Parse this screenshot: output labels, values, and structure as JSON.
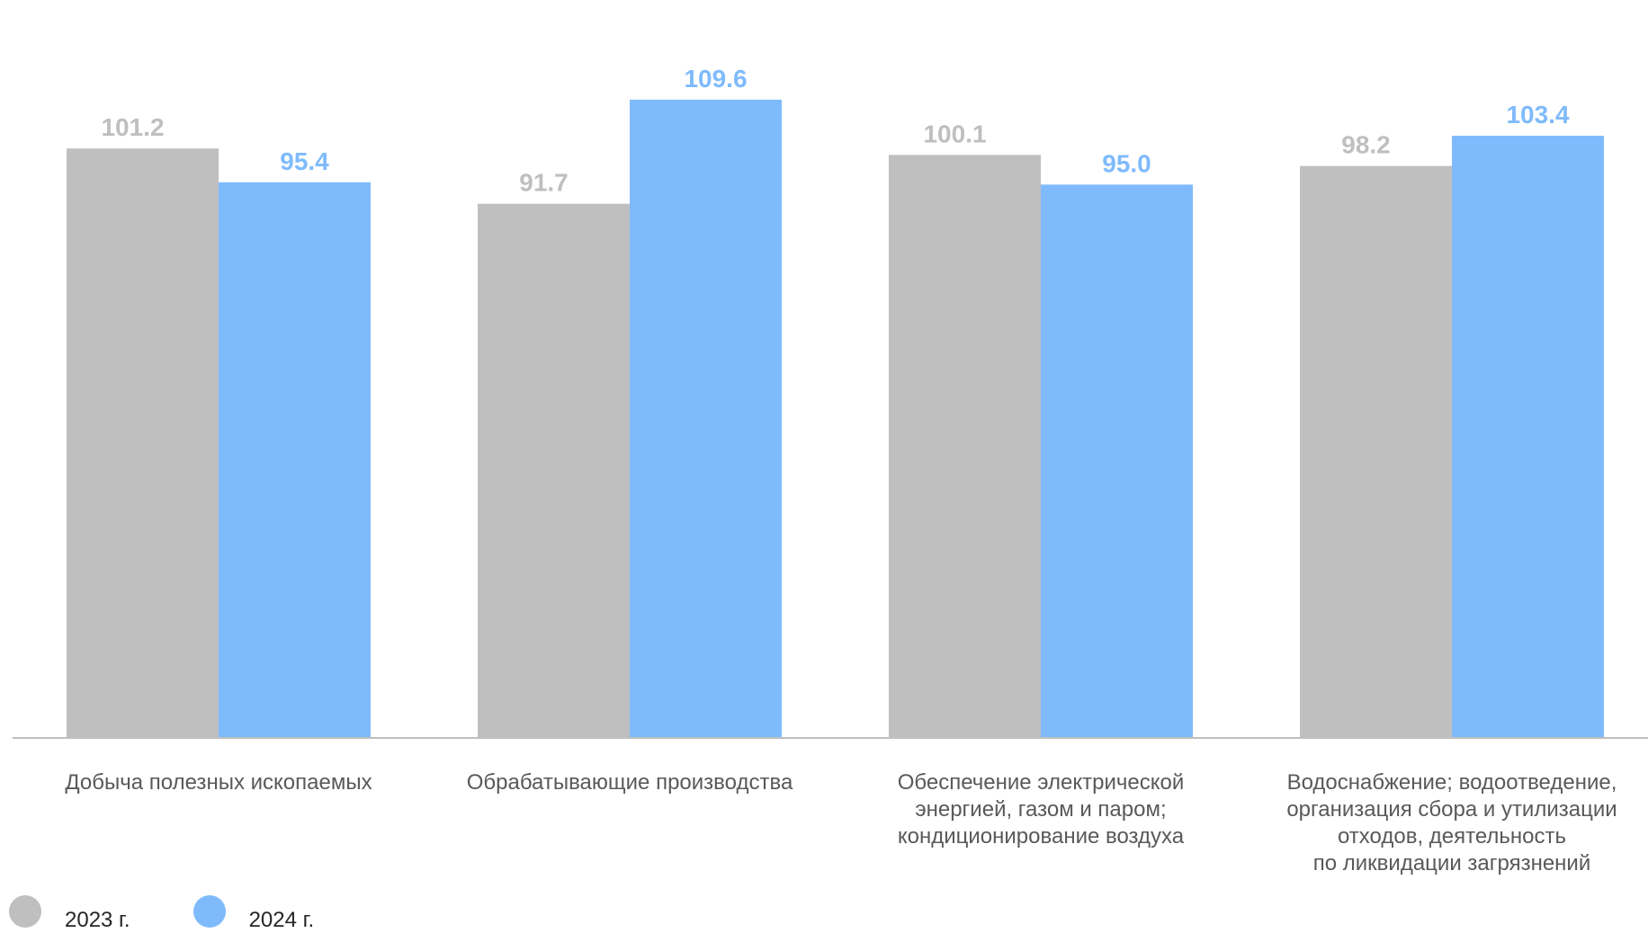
{
  "chart_data": {
    "type": "bar",
    "categories": [
      "Добыча полезных ископаемых",
      "Обрабатывающие производства",
      "Обеспечение электрической\nэнергией, газом и паром;\nкондиционирование воздуха",
      "Водоснабжение; водоотведение,\nорганизация сбора и утилизации\nотходов, деятельность\nпо ликвидации загрязнений"
    ],
    "series": [
      {
        "name": "2023 г.",
        "color": "#bfbfbf",
        "label_color": "#bfbfbf",
        "values": [
          101.2,
          91.7,
          100.1,
          98.2
        ],
        "labels": [
          "101.2",
          "91.7",
          "100.1",
          "98.2"
        ]
      },
      {
        "name": "2024 г.",
        "color": "#7fbbfc",
        "label_color": "#7fbbfc",
        "values": [
          95.4,
          109.6,
          95.0,
          103.4
        ],
        "labels": [
          "95.4",
          "109.6",
          "95.0",
          "103.4"
        ]
      }
    ],
    "ylim": [
      0,
      115
    ],
    "grid": false,
    "legend_position": "bottom-left",
    "axis_color": "#bfbfbf",
    "category_label_color": "#595959"
  }
}
